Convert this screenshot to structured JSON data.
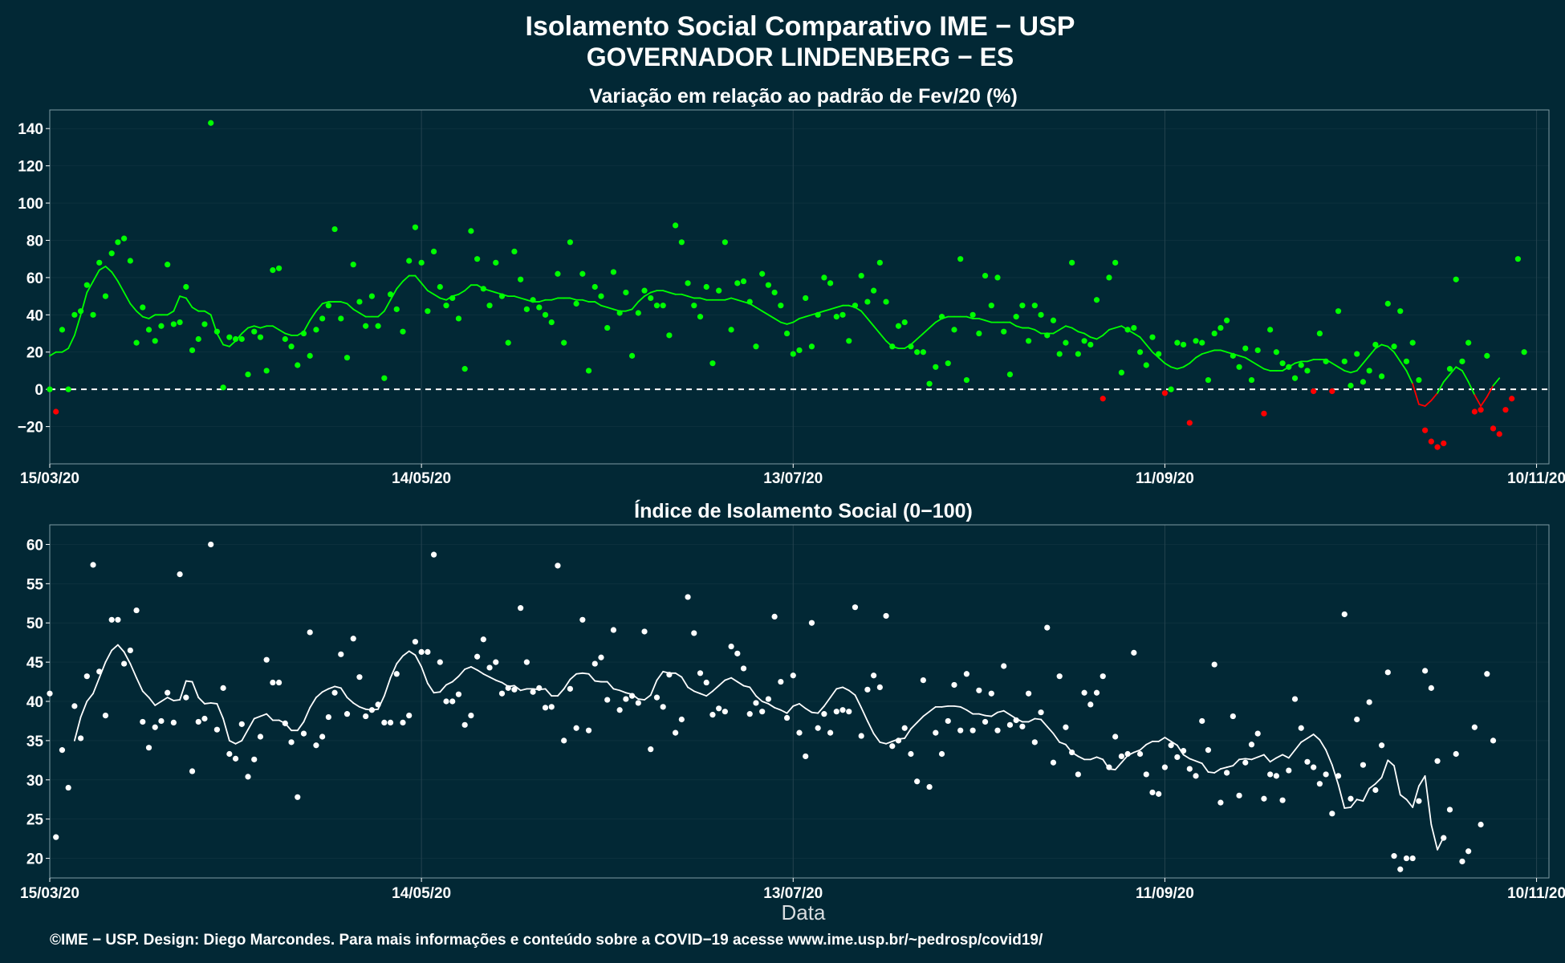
{
  "header": {
    "title_line1": "Isolamento Social Comparativo IME − USP",
    "title_line2": "GOVERNADOR LINDENBERG − ES"
  },
  "footer": {
    "text": "©IME − USP. Design: Diego Marcondes. Para mais informações e conteúdo sobre a COVID−19 acesse www.ime.usp.br/~pedrosp/covid19/"
  },
  "colors": {
    "background": "#022835",
    "positive": "#00ff00",
    "negative": "#ff0000",
    "index": "#ffffff",
    "grid": "#24434f",
    "axis_line": "#7f9aa3"
  },
  "chart_data": [
    {
      "type": "scatter",
      "title": "Variação em relação ao padrão de Fev/20 (%)",
      "xlabel": "",
      "ylabel": "",
      "x_ticks": [
        "15/03/20",
        "14/05/20",
        "13/07/20",
        "11/09/20",
        "10/11/20"
      ],
      "x_range_days": [
        0,
        242
      ],
      "ylim": [
        -40,
        150
      ],
      "y_ticks": [
        -20,
        0,
        20,
        40,
        60,
        80,
        100,
        120,
        140
      ],
      "reference_line": 0,
      "grid": true,
      "series": [
        {
          "kind": "points",
          "values": [
            0,
            -12,
            32,
            0,
            40,
            42,
            56,
            40,
            68,
            50,
            73,
            79,
            81,
            69,
            25,
            44,
            32,
            26,
            34,
            67,
            35,
            36,
            55,
            21,
            27,
            35,
            143,
            31,
            1,
            28,
            27,
            27,
            8,
            31,
            28,
            10,
            64,
            65,
            27,
            23,
            13,
            30,
            18,
            32,
            38,
            45,
            86,
            38,
            17,
            67,
            47,
            34,
            50,
            34,
            6,
            51,
            43,
            31,
            69,
            87,
            68,
            42,
            74,
            55,
            45,
            49,
            38,
            11,
            85,
            70,
            54,
            45,
            68,
            50,
            25,
            74,
            59,
            43,
            48,
            44,
            40,
            36,
            62,
            25,
            79,
            46,
            62,
            10,
            55,
            50,
            33,
            63,
            41,
            52,
            18,
            41,
            53,
            49,
            45,
            45,
            29,
            88,
            79,
            57,
            45,
            39,
            55,
            14,
            53,
            79,
            32,
            57,
            58,
            47,
            23,
            62,
            56,
            52,
            45,
            30,
            19,
            21,
            49,
            23,
            40,
            60,
            57,
            39,
            40,
            26,
            45,
            61,
            47,
            53,
            68,
            47,
            23,
            34,
            36,
            23,
            20,
            20,
            3,
            12,
            39,
            14,
            32,
            70,
            5,
            40,
            30,
            61,
            45,
            60,
            31,
            8,
            39,
            45,
            26,
            45,
            40,
            29,
            37,
            19,
            25,
            68,
            19,
            26,
            24,
            48,
            -5,
            60,
            68,
            9,
            32,
            33,
            20,
            13,
            28,
            19,
            -2,
            0,
            25,
            24,
            -18,
            26,
            25,
            5,
            30,
            33,
            37,
            18,
            12,
            22,
            5,
            21,
            -13,
            32,
            20,
            14,
            12,
            6,
            13,
            10,
            -1,
            30,
            15,
            -1,
            42,
            15,
            2,
            19,
            4,
            10,
            24,
            7,
            46,
            23,
            42,
            15,
            25,
            5,
            -22,
            -28,
            -31,
            -29,
            11,
            59,
            15,
            25,
            -12,
            -11,
            18,
            -21,
            -24,
            -11,
            -5,
            70,
            20
          ]
        },
        {
          "kind": "moving-average",
          "values": [
            18,
            20,
            20,
            22,
            29,
            40,
            52,
            58,
            64,
            66,
            63,
            58,
            52,
            46,
            42,
            39,
            38,
            40,
            40,
            40,
            42,
            50,
            49,
            44,
            42,
            42,
            40,
            30,
            24,
            23,
            26,
            30,
            33,
            34,
            33,
            34,
            34,
            32,
            30,
            29,
            29,
            31,
            37,
            42,
            46,
            47,
            47,
            47,
            46,
            43,
            41,
            39,
            39,
            39,
            42,
            48,
            54,
            58,
            61,
            61,
            57,
            53,
            51,
            49,
            48,
            50,
            51,
            53,
            56,
            56,
            54,
            53,
            52,
            51,
            50,
            50,
            49,
            48,
            47,
            47,
            48,
            48,
            49,
            49,
            49,
            48,
            48,
            47,
            47,
            45,
            44,
            43,
            42,
            42,
            43,
            47,
            50,
            52,
            53,
            53,
            52,
            51,
            51,
            50,
            49,
            49,
            48,
            48,
            48,
            48,
            49,
            48,
            47,
            46,
            44,
            42,
            40,
            38,
            36,
            35,
            36,
            38,
            39,
            40,
            41,
            42,
            43,
            44,
            45,
            45,
            44,
            42,
            38,
            34,
            30,
            26,
            23,
            22,
            22,
            24,
            27,
            30,
            33,
            36,
            38,
            39,
            39,
            39,
            39,
            38,
            38,
            37,
            36,
            36,
            36,
            36,
            34,
            33,
            33,
            32,
            30,
            30,
            30,
            32,
            34,
            33,
            31,
            30,
            28,
            27,
            29,
            32,
            33,
            34,
            32,
            30,
            28,
            24,
            20,
            17,
            14,
            12,
            11,
            12,
            14,
            17,
            19,
            20,
            21,
            21,
            20,
            19,
            18,
            17,
            15,
            13,
            11,
            10,
            10,
            10,
            12,
            14,
            15,
            15,
            16,
            16,
            16,
            14,
            12,
            10,
            9,
            10,
            14,
            18,
            22,
            24,
            23,
            20,
            15,
            10,
            3,
            -8,
            -9,
            -6,
            -2,
            4,
            8,
            12,
            10,
            4,
            -3,
            -9,
            -4,
            2,
            6
          ]
        }
      ]
    },
    {
      "type": "scatter",
      "title": "Índice de Isolamento Social (0−100)",
      "xlabel": "Data",
      "ylabel": "",
      "x_ticks": [
        "15/03/20",
        "14/05/20",
        "13/07/20",
        "11/09/20",
        "10/11/20"
      ],
      "x_range_days": [
        0,
        242
      ],
      "ylim": [
        17.5,
        62.5
      ],
      "y_ticks": [
        20,
        25,
        30,
        35,
        40,
        45,
        50,
        55,
        60
      ],
      "grid": true,
      "series": [
        {
          "kind": "points",
          "values": [
            41,
            22.7,
            33.8,
            29,
            39.4,
            35.3,
            43.2,
            57.4,
            43.8,
            38.2,
            50.4,
            50.4,
            44.8,
            46.5,
            51.6,
            37.4,
            34.1,
            36.7,
            37.5,
            41.1,
            37.3,
            56.2,
            40.5,
            31.1,
            37.4,
            37.8,
            60,
            36.4,
            41.7,
            33.3,
            32.7,
            37.1,
            30.4,
            32.6,
            35.5,
            45.3,
            42.4,
            42.4,
            37.2,
            34.8,
            27.8,
            35.9,
            48.8,
            34.4,
            35.5,
            38,
            41.1,
            46,
            38.4,
            48,
            43.1,
            38.1,
            38.9,
            39.6,
            37.3,
            37.3,
            43.5,
            37.3,
            38.2,
            47.6,
            46.3,
            46.3,
            58.7,
            45,
            40,
            40,
            40.9,
            37,
            38.2,
            45.7,
            47.9,
            44.3,
            45,
            41,
            41.7,
            41.5,
            51.9,
            45,
            41.2,
            41.7,
            39.2,
            39.3,
            57.3,
            35,
            41.6,
            36.6,
            50.4,
            36.3,
            44.8,
            45.6,
            40.2,
            49.1,
            38.9,
            40.3,
            40.7,
            39.8,
            48.9,
            33.9,
            40.5,
            39.3,
            43.4,
            36,
            37.7,
            53.3,
            48.7,
            43.6,
            42.4,
            38.3,
            39.1,
            38.7,
            47,
            46.1,
            44.2,
            38.4,
            39.8,
            38.7,
            40.3,
            50.8,
            42.5,
            37.9,
            43.3,
            36,
            33,
            50,
            36.6,
            38.4,
            36,
            38.7,
            38.9,
            38.7,
            52,
            35.6,
            41.5,
            43.3,
            41.8,
            50.9,
            34.3,
            35,
            36.6,
            33.3,
            29.8,
            42.7,
            29.1,
            36,
            33.3,
            37.5,
            42.1,
            36.3,
            43.5,
            36.3,
            41.4,
            37.4,
            41,
            36.3,
            44.5,
            37,
            37.6,
            36.8,
            41,
            34.8,
            38.6,
            49.4,
            32.2,
            43.2,
            36.7,
            33.5,
            30.7,
            41.1,
            39.6,
            41.1,
            43.2,
            31.6,
            35.5,
            33,
            33.3,
            46.2,
            33.3,
            30.7,
            28.4,
            28.2,
            31.6,
            34.4,
            32.9,
            33.7,
            31.4,
            30.5,
            37.5,
            33.8,
            44.7,
            27.1,
            30.9,
            38.1,
            28,
            32.2,
            34.5,
            35.9,
            27.6,
            30.7,
            30.5,
            27.4,
            31.2,
            40.3,
            36.6,
            32.3,
            31.6,
            29.5,
            30.7,
            25.7,
            30.5,
            51.1,
            27.6,
            37.7,
            31.9,
            39.9,
            28.7,
            34.4,
            43.7,
            20.3,
            18.6,
            20,
            20,
            27.3,
            43.9,
            41.7,
            32.4,
            22.6,
            26.2,
            33.3,
            19.6,
            20.9,
            36.7,
            24.3,
            43.5,
            35
          ]
        },
        {
          "kind": "moving-average",
          "values": [
            null,
            null,
            null,
            null,
            35,
            38,
            40,
            41,
            43,
            45,
            46.5,
            47.2,
            46.3,
            44.8,
            43,
            41.3,
            40.5,
            39.5,
            40,
            40.5,
            40.1,
            40.2,
            42.6,
            42.5,
            40.5,
            39.7,
            39.8,
            39.7,
            37.8,
            35,
            34.6,
            35,
            36.4,
            37.8,
            38.1,
            38.4,
            37.6,
            37.6,
            37.2,
            36.3,
            36.3,
            37.4,
            39.2,
            40.5,
            41.2,
            41.6,
            41.9,
            41.7,
            40.5,
            39.8,
            39.3,
            39,
            38.9,
            39,
            40.7,
            43,
            44.8,
            45.8,
            46.4,
            45.9,
            44.4,
            42.3,
            41.1,
            41.2,
            42.1,
            42.5,
            43.2,
            44.1,
            44.4,
            44,
            43.5,
            43.1,
            42.7,
            42.4,
            41.9,
            42,
            41.4,
            41.6,
            41.6,
            41.5,
            41.6,
            40.7,
            40.7,
            41.6,
            42.8,
            43.5,
            43.6,
            43.5,
            42.6,
            42.5,
            42.5,
            41.6,
            41.4,
            41.1,
            40.9,
            40.3,
            40.2,
            40.8,
            42.7,
            43.8,
            43.6,
            43.6,
            43.1,
            41.8,
            41.3,
            41,
            40.7,
            41.3,
            42,
            42.7,
            43,
            42.5,
            42,
            41.8,
            40.7,
            40,
            39.7,
            39.2,
            38.9,
            38.5,
            39.4,
            39.7,
            39.1,
            38.6,
            38.5,
            39.4,
            40.5,
            41.6,
            41.8,
            41.4,
            40.8,
            39.2,
            37.5,
            35.9,
            34.8,
            34.6,
            34.9,
            35.2,
            35.3,
            36.5,
            37.3,
            38.1,
            38.7,
            39.3,
            39.3,
            39.4,
            39.4,
            39.3,
            38.9,
            38.4,
            38.4,
            38.2,
            38.1,
            38.6,
            38.8,
            38.3,
            37.8,
            37.4,
            37.4,
            37.8,
            37.7,
            36.8,
            35.9,
            34.8,
            34.5,
            33.5,
            33,
            32.6,
            32.6,
            32.9,
            32.6,
            31.4,
            31.3,
            32.2,
            33.1,
            33.5,
            33.8,
            34.5,
            34.9,
            34.9,
            35.4,
            34.9,
            34.4,
            33.2,
            32.7,
            32.4,
            32.1,
            31,
            30.9,
            31.4,
            31.6,
            31.8,
            32.6,
            32.7,
            32.6,
            32.9,
            33.2,
            32.3,
            32.8,
            33.2,
            32.8,
            33.8,
            34.8,
            35.3,
            35.8,
            35.1,
            33.8,
            31.9,
            29.4,
            26.4,
            26.5,
            27.5,
            27.3,
            28.9,
            29.5,
            30.3,
            32.5,
            31.8,
            28.1,
            27.5,
            26.5,
            29.2,
            30.5,
            24.3,
            21.1,
            22.7
          ]
        }
      ]
    }
  ]
}
